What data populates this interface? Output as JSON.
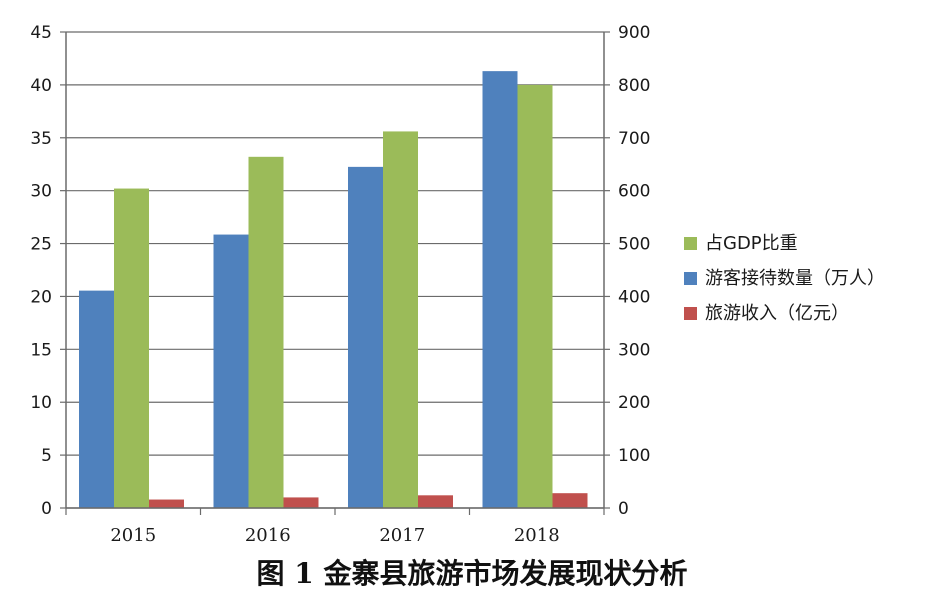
{
  "caption": "图 1  金寨县旅游市场发展现状分析",
  "chart_data": {
    "type": "bar",
    "title": "",
    "xlabel": "",
    "ylabel": "",
    "categories": [
      "2015",
      "2016",
      "2017",
      "2018"
    ],
    "left_axis": {
      "ylim": [
        0,
        45
      ],
      "ticks": [
        0,
        5,
        10,
        15,
        20,
        25,
        30,
        35,
        40,
        45
      ]
    },
    "right_axis": {
      "ylim": [
        0,
        900
      ],
      "ticks": [
        0,
        100,
        200,
        300,
        400,
        500,
        600,
        700,
        800,
        900
      ]
    },
    "grid": true,
    "legend_position": "right",
    "series": [
      {
        "name": "游客接待数量（万人）",
        "axis": "right",
        "color": "#4f81bd",
        "values": [
          411,
          517,
          645,
          826
        ]
      },
      {
        "name": "占GDP比重",
        "axis": "left",
        "color": "#9bbb59",
        "values": [
          30.2,
          33.2,
          35.6,
          40.0
        ]
      },
      {
        "name": "旅游收入（亿元）",
        "axis": "right",
        "color": "#c0504d",
        "values": [
          16,
          20,
          24,
          28
        ]
      }
    ],
    "legend_order": [
      "占GDP比重",
      "游客接待数量（万人）",
      "旅游收入（亿元）"
    ]
  }
}
